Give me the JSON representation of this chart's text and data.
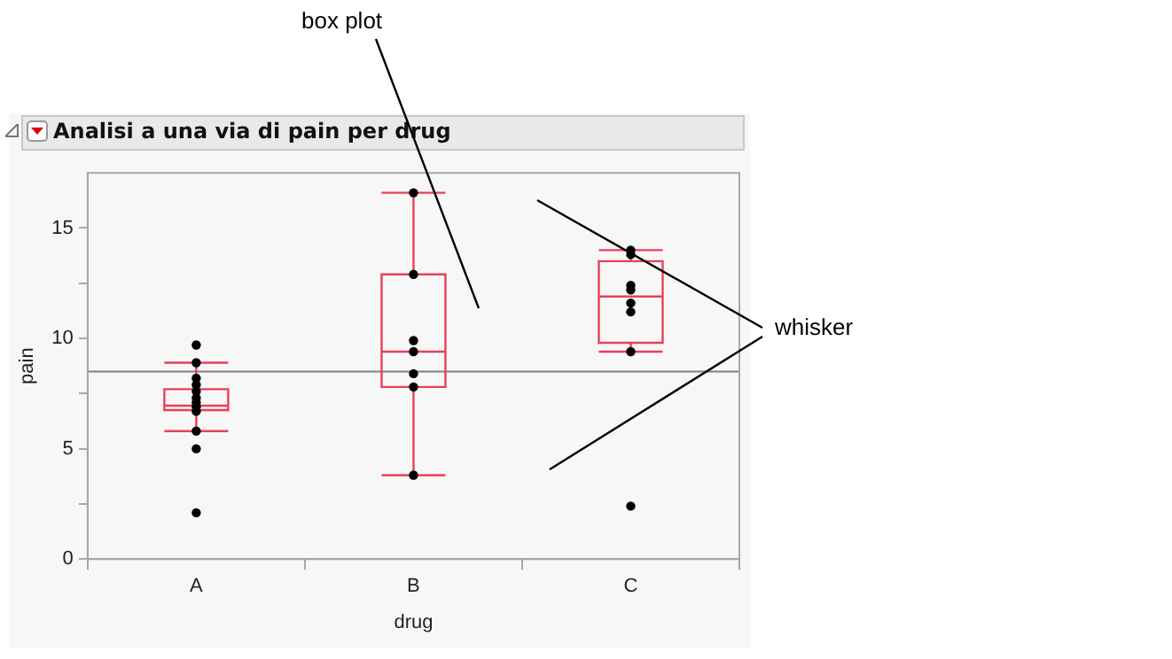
{
  "chart_data": {
    "type": "box",
    "title": "Analisi a una via di pain per drug",
    "xlabel": "drug",
    "ylabel": "pain",
    "categories": [
      "A",
      "B",
      "C"
    ],
    "series": [
      {
        "color": "#e8405a",
        "boxes": [
          {
            "low": 5.8,
            "q1": 6.75,
            "median": 6.95,
            "q3": 7.7,
            "high": 8.9
          },
          {
            "low": 3.8,
            "q1": 7.8,
            "median": 9.4,
            "q3": 12.9,
            "high": 16.6
          },
          {
            "low": 9.4,
            "q1": 9.8,
            "median": 11.9,
            "q3": 13.5,
            "high": 14.0
          }
        ]
      },
      {
        "type": "scatter",
        "color": "#000000",
        "x": [
          "A",
          "A",
          "A",
          "A",
          "A",
          "A",
          "A",
          "A",
          "A",
          "A",
          "A",
          "A",
          "B",
          "B",
          "B",
          "B",
          "B",
          "B",
          "B",
          "C",
          "C",
          "C",
          "C",
          "C",
          "C",
          "C",
          "C"
        ],
        "values": [
          9.7,
          8.9,
          8.2,
          7.9,
          7.6,
          7.3,
          7.1,
          6.9,
          6.7,
          5.8,
          5.0,
          2.1,
          16.6,
          12.9,
          9.9,
          9.4,
          8.4,
          7.8,
          3.8,
          14.0,
          13.8,
          12.4,
          12.2,
          11.6,
          11.2,
          9.4,
          2.4
        ]
      }
    ],
    "ylim": [
      0,
      17.5
    ],
    "yticks": [
      0,
      {
        "value": 2.5,
        "label": null
      },
      5,
      {
        "value": 7.5,
        "label": null
      },
      10,
      {
        "value": 12.5,
        "label": null
      },
      15
    ],
    "ref_lines": [
      {
        "axis": "y",
        "value": 8.5,
        "color": "#808080"
      }
    ],
    "grid": false,
    "legend": false,
    "marker": "circle",
    "annotations": [
      "box plot",
      "whisker"
    ]
  }
}
